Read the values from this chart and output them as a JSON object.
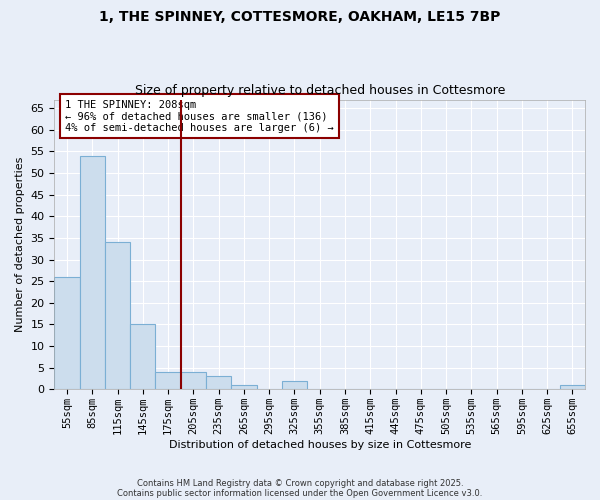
{
  "title1": "1, THE SPINNEY, COTTESMORE, OAKHAM, LE15 7BP",
  "title2": "Size of property relative to detached houses in Cottesmore",
  "xlabel": "Distribution of detached houses by size in Cottesmore",
  "ylabel": "Number of detached properties",
  "categories": [
    "55sqm",
    "85sqm",
    "115sqm",
    "145sqm",
    "175sqm",
    "205sqm",
    "235sqm",
    "265sqm",
    "295sqm",
    "325sqm",
    "355sqm",
    "385sqm",
    "415sqm",
    "445sqm",
    "475sqm",
    "505sqm",
    "535sqm",
    "565sqm",
    "595sqm",
    "625sqm",
    "655sqm"
  ],
  "values": [
    26,
    54,
    34,
    15,
    4,
    4,
    3,
    1,
    0,
    2,
    0,
    0,
    0,
    0,
    0,
    0,
    0,
    0,
    0,
    0,
    1
  ],
  "bar_color": "#ccdded",
  "bar_edge_color": "#7bafd4",
  "ylim": [
    0,
    67
  ],
  "yticks": [
    0,
    5,
    10,
    15,
    20,
    25,
    30,
    35,
    40,
    45,
    50,
    55,
    60,
    65
  ],
  "red_line_index": 5,
  "annotation_line1": "1 THE SPINNEY: 208sqm",
  "annotation_line2": "← 96% of detached houses are smaller (136)",
  "annotation_line3": "4% of semi-detached houses are larger (6) →",
  "background_color": "#e8eef8",
  "grid_color": "#ffffff",
  "footer1": "Contains HM Land Registry data © Crown copyright and database right 2025.",
  "footer2": "Contains public sector information licensed under the Open Government Licence v3.0."
}
